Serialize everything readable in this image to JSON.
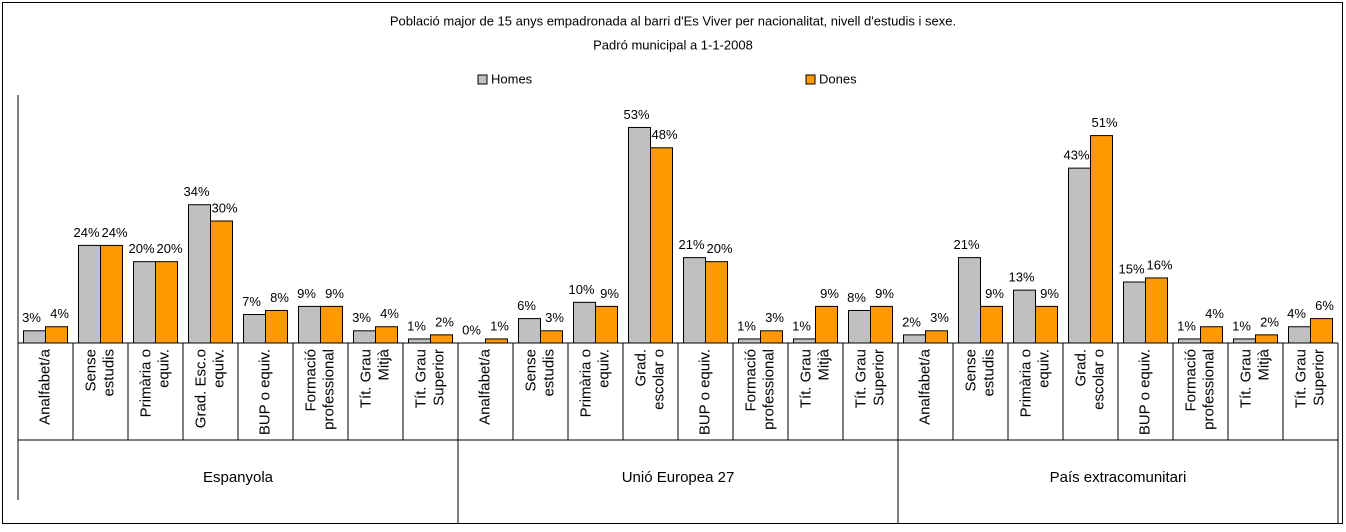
{
  "chart_data": {
    "type": "bar",
    "title": "Població major de 15 anys empadronada al barri d'Es Viver per nacionalitat, nivell d'estudis i sexe.",
    "subtitle": "Padró municipal a 1-1-2008",
    "groups": [
      "Espanyola",
      "Unió Europea 27",
      "País extracomunitari"
    ],
    "categories": [
      "Analfabet/a",
      "Sense estudis",
      "Primària o equiv.",
      "Grad. Esc.o equiv.",
      "BUP o equiv.",
      "Formació professional",
      "Tít. Grau Mitjà",
      "Tít. Grau Superior",
      "Analfabet/a",
      "Sense estudis",
      "Primària o equiv.",
      "Grad. escolar o",
      "BUP o equiv.",
      "Formació professional",
      "Tít. Grau Mitjà",
      "Tít. Grau Superior",
      "Analfabet/a",
      "Sense estudis",
      "Primària o equiv.",
      "Grad. escolar o",
      "BUP o equiv.",
      "Formació professional",
      "Tít. Grau Mitjà",
      "Tít. Grau Superior"
    ],
    "series": [
      {
        "name": "Homes",
        "color": "#c0c0c0",
        "values": [
          3,
          24,
          20,
          34,
          7,
          9,
          3,
          1,
          0,
          6,
          10,
          53,
          21,
          1,
          1,
          8,
          2,
          21,
          13,
          43,
          15,
          1,
          1,
          4
        ],
        "value_labels": [
          "3%",
          "24%",
          "20%",
          "34%",
          "7%",
          "9%",
          "3%",
          "1%",
          "0%",
          "6%",
          "10%",
          "53%",
          "21%",
          "1%",
          "1%",
          "8%",
          "2%",
          "21%",
          "13%",
          "43%",
          "15%",
          "1%",
          "1%",
          "4%"
        ]
      },
      {
        "name": "Dones",
        "color": "#ff9900",
        "values": [
          4,
          24,
          20,
          30,
          8,
          9,
          4,
          2,
          1,
          3,
          9,
          48,
          20,
          3,
          9,
          9,
          3,
          9,
          9,
          51,
          16,
          4,
          2,
          6
        ],
        "value_labels": [
          "4%",
          "24%",
          "20%",
          "30%",
          "8%",
          "9%",
          "4%",
          "2%",
          "1%",
          "3%",
          "9%",
          "48%",
          "20%",
          "3%",
          "9%",
          "9%",
          "3%",
          "9%",
          "9%",
          "51%",
          "16%",
          "4%",
          "2%",
          "6%"
        ]
      }
    ],
    "ylim": [
      0,
      60
    ]
  }
}
